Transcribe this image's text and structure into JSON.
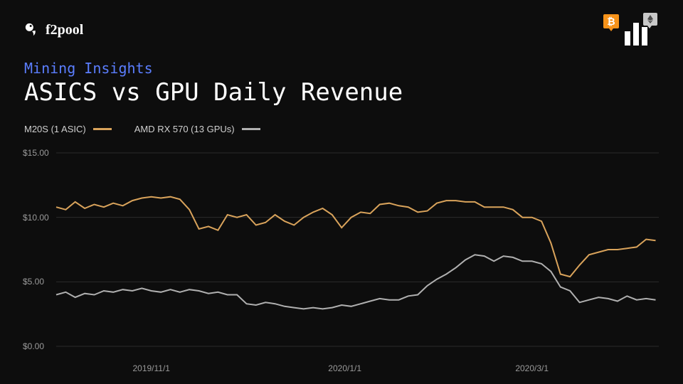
{
  "brand": {
    "name": "f2pool"
  },
  "header": {
    "btc_badge_color": "#f7931a",
    "eth_badge_color": "#c8c8c8"
  },
  "page": {
    "subtitle": "Mining Insights",
    "subtitle_color": "#5b7eff",
    "title": "ASICS vs GPU Daily Revenue",
    "title_fontsize": 34,
    "background_color": "#0d0d0d"
  },
  "legend": {
    "items": [
      {
        "label": "M20S (1 ASIC)",
        "color": "#d9a35b"
      },
      {
        "label": "AMD RX 570 (13 GPUs)",
        "color": "#b0b0b0"
      }
    ]
  },
  "chart": {
    "type": "line",
    "line_width": 2,
    "grid_color": "#2c2c2c",
    "axis_label_color": "#9a9a9a",
    "axis_label_fontsize": 12,
    "ylim": [
      0,
      15
    ],
    "yticks": [
      {
        "v": 0,
        "label": "$0.00"
      },
      {
        "v": 5,
        "label": "$5.00"
      },
      {
        "v": 10,
        "label": "$10.00"
      },
      {
        "v": 15,
        "label": "$15.00"
      }
    ],
    "xticks": [
      {
        "t": 30,
        "label": "2019/11/1"
      },
      {
        "t": 91,
        "label": "2020/1/1"
      },
      {
        "t": 150,
        "label": "2020/3/1"
      }
    ],
    "x_range": [
      0,
      190
    ],
    "series": [
      {
        "name": "M20S (1 ASIC)",
        "color": "#d9a35b",
        "points": [
          [
            0,
            10.8
          ],
          [
            3,
            10.6
          ],
          [
            6,
            11.2
          ],
          [
            9,
            10.7
          ],
          [
            12,
            11.0
          ],
          [
            15,
            10.8
          ],
          [
            18,
            11.1
          ],
          [
            21,
            10.9
          ],
          [
            24,
            11.3
          ],
          [
            27,
            11.5
          ],
          [
            30,
            11.6
          ],
          [
            33,
            11.5
          ],
          [
            36,
            11.6
          ],
          [
            39,
            11.4
          ],
          [
            42,
            10.6
          ],
          [
            45,
            9.1
          ],
          [
            48,
            9.3
          ],
          [
            51,
            9.0
          ],
          [
            54,
            10.2
          ],
          [
            57,
            10.0
          ],
          [
            60,
            10.2
          ],
          [
            63,
            9.4
          ],
          [
            66,
            9.6
          ],
          [
            69,
            10.2
          ],
          [
            72,
            9.7
          ],
          [
            75,
            9.4
          ],
          [
            78,
            10.0
          ],
          [
            81,
            10.4
          ],
          [
            84,
            10.7
          ],
          [
            87,
            10.2
          ],
          [
            90,
            9.2
          ],
          [
            93,
            10.0
          ],
          [
            96,
            10.4
          ],
          [
            99,
            10.3
          ],
          [
            102,
            11.0
          ],
          [
            105,
            11.1
          ],
          [
            108,
            10.9
          ],
          [
            111,
            10.8
          ],
          [
            114,
            10.4
          ],
          [
            117,
            10.5
          ],
          [
            120,
            11.1
          ],
          [
            123,
            11.3
          ],
          [
            126,
            11.3
          ],
          [
            129,
            11.2
          ],
          [
            132,
            11.2
          ],
          [
            135,
            10.8
          ],
          [
            138,
            10.8
          ],
          [
            141,
            10.8
          ],
          [
            144,
            10.6
          ],
          [
            147,
            10.0
          ],
          [
            150,
            10.0
          ],
          [
            153,
            9.7
          ],
          [
            156,
            8.0
          ],
          [
            159,
            5.6
          ],
          [
            162,
            5.4
          ],
          [
            165,
            6.3
          ],
          [
            168,
            7.1
          ],
          [
            171,
            7.3
          ],
          [
            174,
            7.5
          ],
          [
            177,
            7.5
          ],
          [
            180,
            7.6
          ],
          [
            183,
            7.7
          ],
          [
            186,
            8.3
          ],
          [
            189,
            8.2
          ]
        ]
      },
      {
        "name": "AMD RX 570 (13 GPUs)",
        "color": "#b0b0b0",
        "points": [
          [
            0,
            4.0
          ],
          [
            3,
            4.2
          ],
          [
            6,
            3.8
          ],
          [
            9,
            4.1
          ],
          [
            12,
            4.0
          ],
          [
            15,
            4.3
          ],
          [
            18,
            4.2
          ],
          [
            21,
            4.4
          ],
          [
            24,
            4.3
          ],
          [
            27,
            4.5
          ],
          [
            30,
            4.3
          ],
          [
            33,
            4.2
          ],
          [
            36,
            4.4
          ],
          [
            39,
            4.2
          ],
          [
            42,
            4.4
          ],
          [
            45,
            4.3
          ],
          [
            48,
            4.1
          ],
          [
            51,
            4.2
          ],
          [
            54,
            4.0
          ],
          [
            57,
            4.0
          ],
          [
            60,
            3.3
          ],
          [
            63,
            3.2
          ],
          [
            66,
            3.4
          ],
          [
            69,
            3.3
          ],
          [
            72,
            3.1
          ],
          [
            75,
            3.0
          ],
          [
            78,
            2.9
          ],
          [
            81,
            3.0
          ],
          [
            84,
            2.9
          ],
          [
            87,
            3.0
          ],
          [
            90,
            3.2
          ],
          [
            93,
            3.1
          ],
          [
            96,
            3.3
          ],
          [
            99,
            3.5
          ],
          [
            102,
            3.7
          ],
          [
            105,
            3.6
          ],
          [
            108,
            3.6
          ],
          [
            111,
            3.9
          ],
          [
            114,
            4.0
          ],
          [
            117,
            4.7
          ],
          [
            120,
            5.2
          ],
          [
            123,
            5.6
          ],
          [
            126,
            6.1
          ],
          [
            129,
            6.7
          ],
          [
            132,
            7.1
          ],
          [
            135,
            7.0
          ],
          [
            138,
            6.6
          ],
          [
            141,
            7.0
          ],
          [
            144,
            6.9
          ],
          [
            147,
            6.6
          ],
          [
            150,
            6.6
          ],
          [
            153,
            6.4
          ],
          [
            156,
            5.8
          ],
          [
            159,
            4.6
          ],
          [
            162,
            4.3
          ],
          [
            165,
            3.4
          ],
          [
            168,
            3.6
          ],
          [
            171,
            3.8
          ],
          [
            174,
            3.7
          ],
          [
            177,
            3.5
          ],
          [
            180,
            3.9
          ],
          [
            183,
            3.6
          ],
          [
            186,
            3.7
          ],
          [
            189,
            3.6
          ]
        ]
      }
    ]
  }
}
